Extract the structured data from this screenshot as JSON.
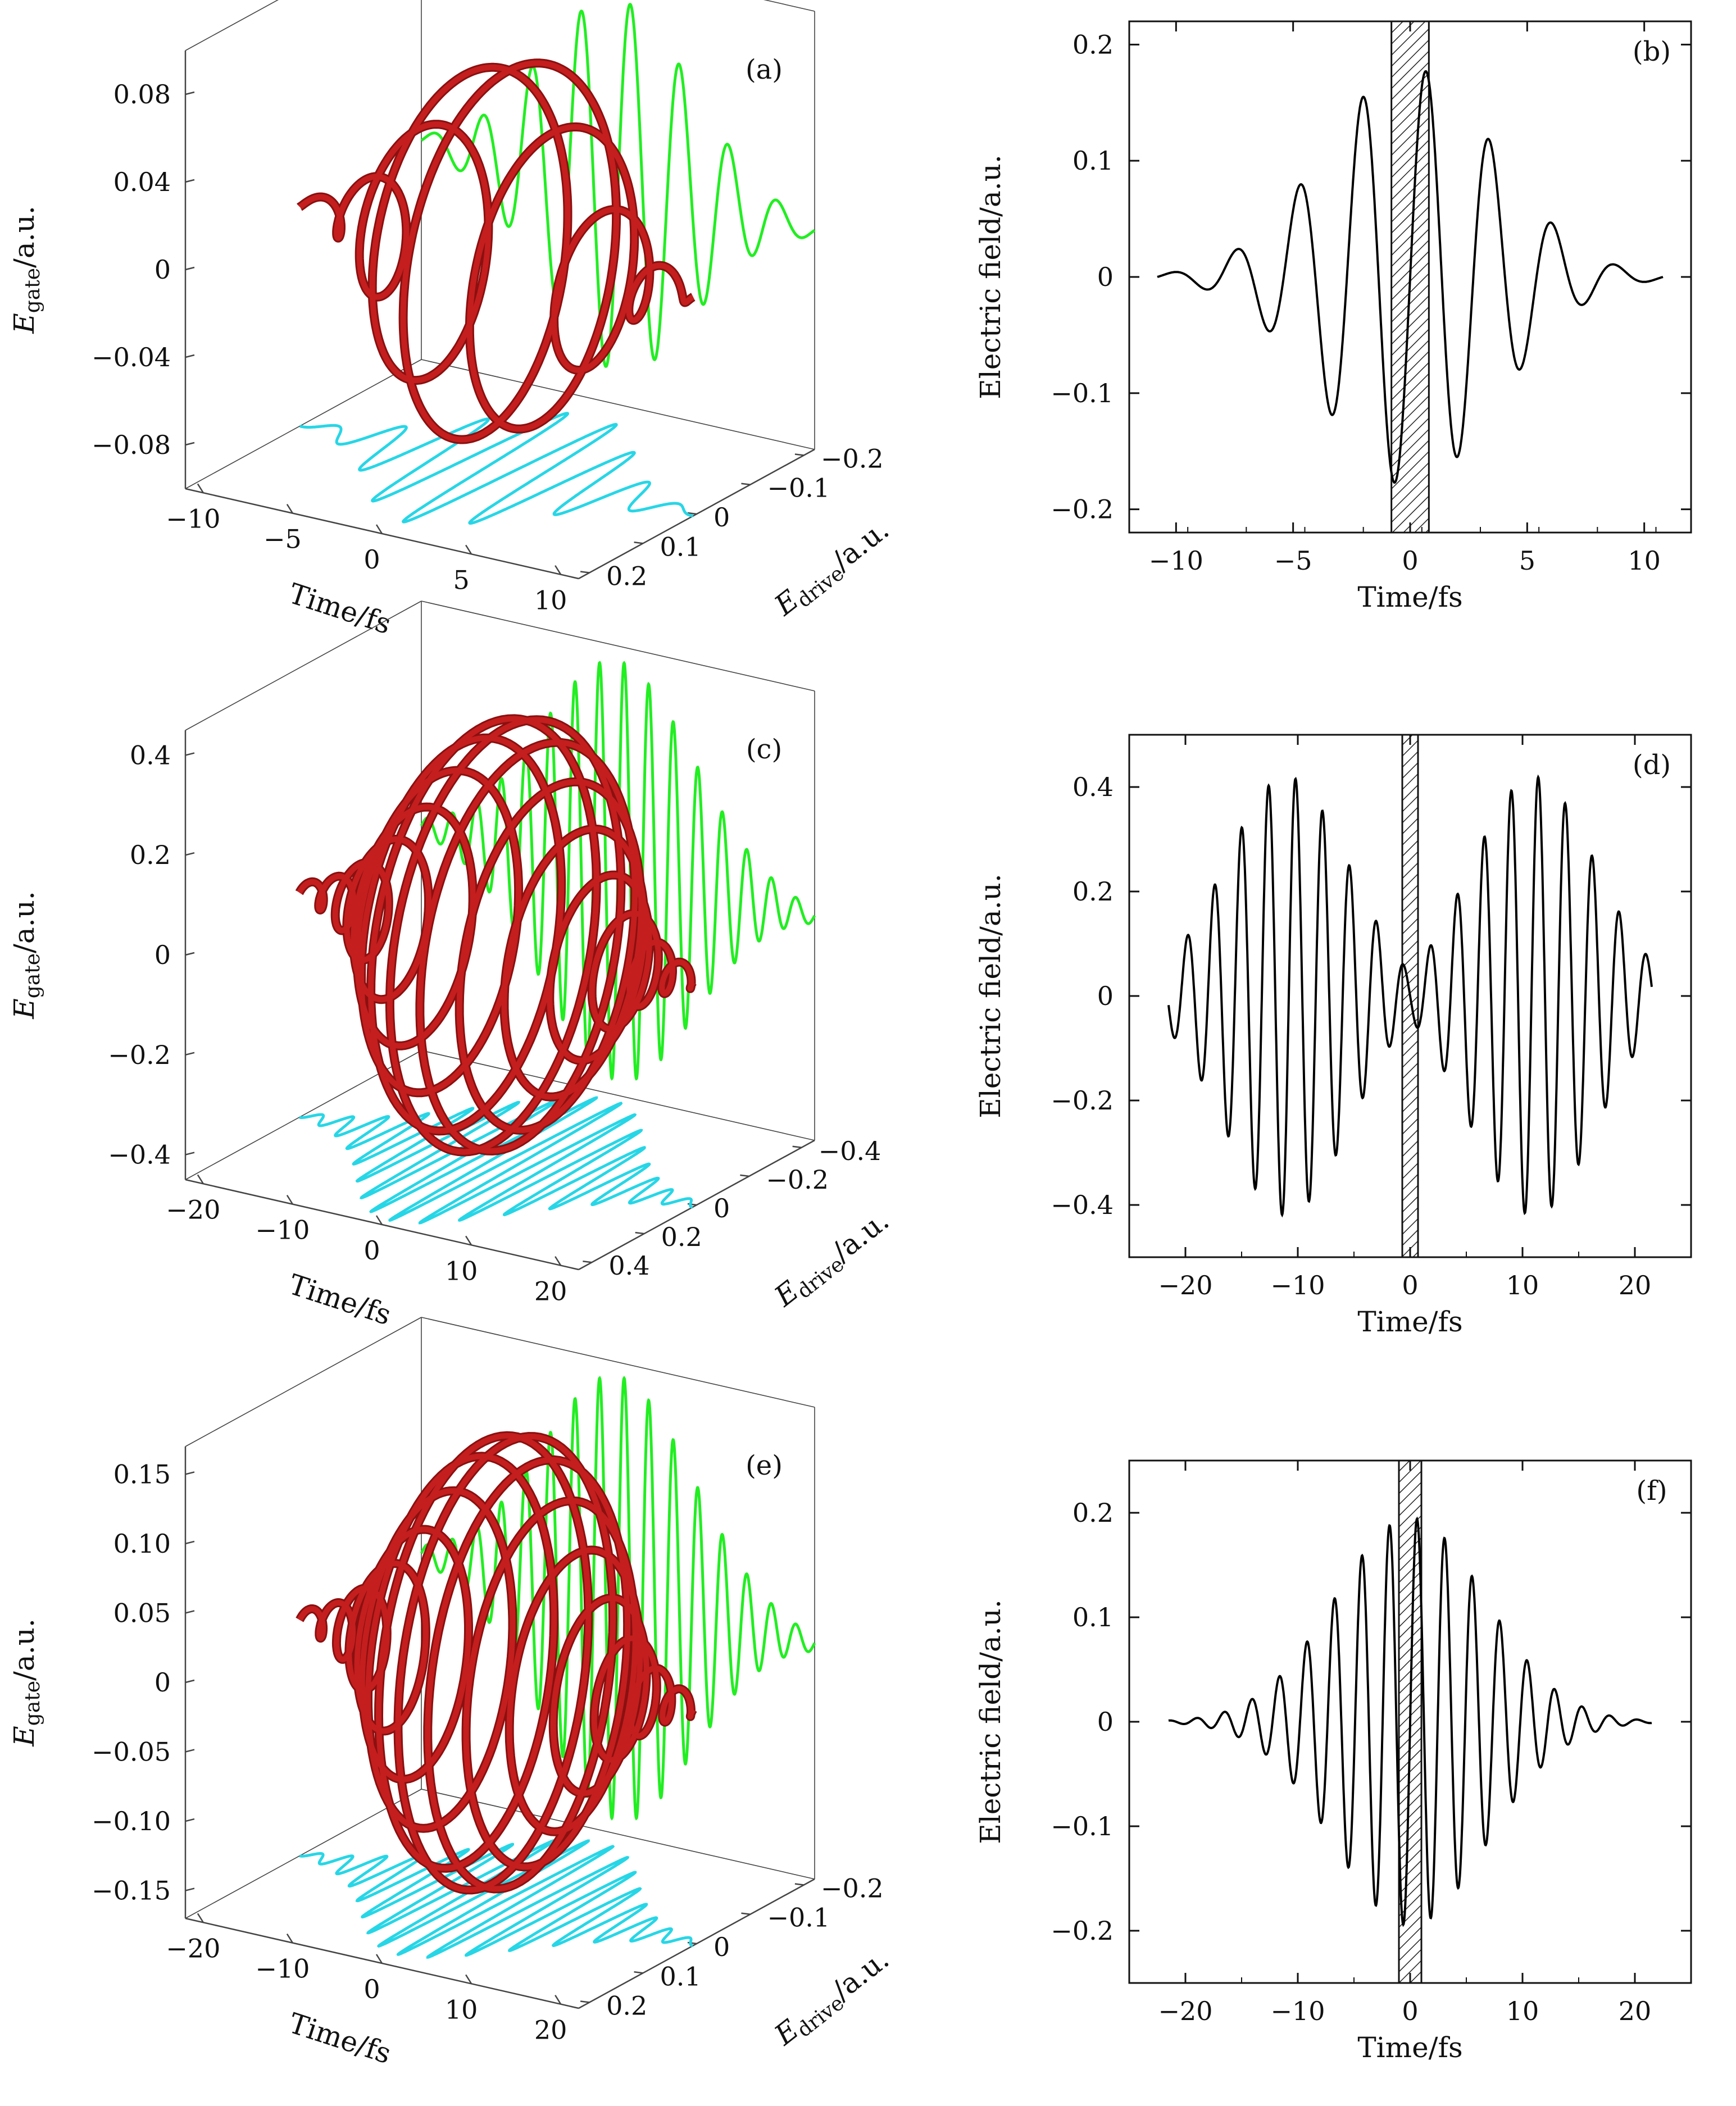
{
  "figure": {
    "panels": [
      "(a)",
      "(b)",
      "(c)",
      "(d)",
      "(e)",
      "(f)"
    ]
  },
  "colors": {
    "helix": "#c41e1e",
    "projection_gate": "#22ee22",
    "projection_drive": "#27d6e6",
    "line": "#000000"
  },
  "chart_data": [
    {
      "id": "a",
      "type": "3d-line",
      "title": "(a)",
      "xlabel": "Time/fs",
      "ylabel_main": "E",
      "ylabel_sub": "gate",
      "ylabel_unit": "/a.u.",
      "zlabel_main": "E",
      "zlabel_sub": "drive",
      "zlabel_unit": "/a.u.",
      "time_ticks": [
        "−10",
        "−5",
        "0",
        "5",
        "10"
      ],
      "time_values": [
        -10,
        -5,
        0,
        5,
        10
      ],
      "gate_ticks": [
        "0.08",
        "0.04",
        "0",
        "−0.04",
        "−0.08"
      ],
      "gate_values": [
        0.08,
        0.04,
        0,
        -0.04,
        -0.08
      ],
      "drive_ticks": [
        "0.2",
        "0.1",
        "0",
        "−0.1",
        "−0.2"
      ],
      "drive_values": [
        0.2,
        0.1,
        0,
        -0.1,
        -0.2
      ],
      "time_range": [
        -11,
        11
      ],
      "gate_range": [
        -0.1,
        0.1
      ],
      "drive_range": [
        -0.22,
        0.22
      ],
      "gate_amplitude": 0.085,
      "drive_amplitude": 0.18,
      "cycles": 8
    },
    {
      "id": "b",
      "type": "line",
      "title": "(b)",
      "xlabel": "Time/fs",
      "ylabel": "Electric field/a.u.",
      "xlim": [
        -12,
        12
      ],
      "ylim": [
        -0.22,
        0.22
      ],
      "xticks": [
        -10,
        -5,
        0,
        5,
        10
      ],
      "xtick_labels": [
        "−10",
        "−5",
        "0",
        "5",
        "10"
      ],
      "yticks": [
        0.2,
        0.1,
        0,
        -0.1,
        -0.2
      ],
      "ytick_labels": [
        "0.2",
        "0.1",
        "0",
        "−0.1",
        "−0.2"
      ],
      "gate_window": [
        -0.8,
        0.8
      ],
      "waveform": {
        "t_range": [
          -10.8,
          10.8
        ],
        "amplitude": 0.18,
        "period": 2.7,
        "phase": 0.0,
        "sigma": 5.2,
        "shape": "gaussian"
      }
    },
    {
      "id": "c",
      "type": "3d-line",
      "title": "(c)",
      "xlabel": "Time/fs",
      "ylabel_main": "E",
      "ylabel_sub": "gate",
      "ylabel_unit": "/a.u.",
      "zlabel_main": "E",
      "zlabel_sub": "drive",
      "zlabel_unit": "/a.u.",
      "time_ticks": [
        "−20",
        "−10",
        "0",
        "10",
        "20"
      ],
      "time_values": [
        -20,
        -10,
        0,
        10,
        20
      ],
      "gate_ticks": [
        "0.4",
        "0.2",
        "0",
        "−0.2",
        "−0.4"
      ],
      "gate_values": [
        0.4,
        0.2,
        0,
        -0.2,
        -0.4
      ],
      "drive_ticks": [
        "0.4",
        "0.2",
        "0",
        "−0.2",
        "−0.4"
      ],
      "drive_values": [
        0.4,
        0.2,
        0,
        -0.2,
        -0.4
      ],
      "time_range": [
        -22,
        22
      ],
      "gate_range": [
        -0.45,
        0.45
      ],
      "drive_range": [
        -0.45,
        0.45
      ],
      "gate_amplitude": 0.42,
      "drive_amplitude": 0.42,
      "cycles": 16
    },
    {
      "id": "d",
      "type": "line",
      "title": "(d)",
      "xlabel": "Time/fs",
      "ylabel": "Electric field/a.u.",
      "xlim": [
        -25,
        25
      ],
      "ylim": [
        -0.5,
        0.5
      ],
      "xticks": [
        -20,
        -10,
        0,
        10,
        20
      ],
      "xtick_labels": [
        "−20",
        "−10",
        "0",
        "10",
        "20"
      ],
      "yticks": [
        0.4,
        0.2,
        0,
        -0.2,
        -0.4
      ],
      "ytick_labels": [
        "0.4",
        "0.2",
        "0",
        "−0.2",
        "−0.4"
      ],
      "gate_window": [
        -0.7,
        0.7
      ],
      "waveform": {
        "t_range": [
          -21.5,
          21.5
        ],
        "amplitude": 0.42,
        "period": 2.4,
        "phase": 3.14159,
        "shape": "double-hump",
        "centers": [
          -11,
          11
        ],
        "sigma": 8.5
      }
    },
    {
      "id": "e",
      "type": "3d-line",
      "title": "(e)",
      "xlabel": "Time/fs",
      "ylabel_main": "E",
      "ylabel_sub": "gate",
      "ylabel_unit": "/a.u.",
      "zlabel_main": "E",
      "zlabel_sub": "drive",
      "zlabel_unit": "/a.u.",
      "time_ticks": [
        "−20",
        "−10",
        "0",
        "10",
        "20"
      ],
      "time_values": [
        -20,
        -10,
        0,
        10,
        20
      ],
      "gate_ticks": [
        "0.15",
        "0.10",
        "0.05",
        "0",
        "−0.05",
        "−0.10",
        "−0.15"
      ],
      "gate_values": [
        0.15,
        0.1,
        0.05,
        0,
        -0.05,
        -0.1,
        -0.15
      ],
      "drive_ticks": [
        "0.2",
        "0.1",
        "0",
        "−0.1",
        "−0.2"
      ],
      "drive_values": [
        0.2,
        0.1,
        0,
        -0.1,
        -0.2
      ],
      "time_range": [
        -22,
        22
      ],
      "gate_range": [
        -0.17,
        0.17
      ],
      "drive_range": [
        -0.22,
        0.22
      ],
      "gate_amplitude": 0.16,
      "drive_amplitude": 0.19,
      "cycles": 16
    },
    {
      "id": "f",
      "type": "line",
      "title": "(f)",
      "xlabel": "Time/fs",
      "ylabel": "Electric field/a.u.",
      "xlim": [
        -25,
        25
      ],
      "ylim": [
        -0.25,
        0.25
      ],
      "xticks": [
        -20,
        -10,
        0,
        10,
        20
      ],
      "xtick_labels": [
        "−20",
        "−10",
        "0",
        "10",
        "20"
      ],
      "yticks": [
        0.2,
        0.1,
        0,
        -0.1,
        -0.2
      ],
      "ytick_labels": [
        "0.2",
        "0.1",
        "0",
        "−0.1",
        "−0.2"
      ],
      "gate_window": [
        -1.0,
        1.0
      ],
      "waveform": {
        "t_range": [
          -21.5,
          21.5
        ],
        "amplitude": 0.195,
        "period": 2.45,
        "phase": 0.0,
        "sigma": 9.5,
        "shape": "gaussian"
      }
    }
  ]
}
